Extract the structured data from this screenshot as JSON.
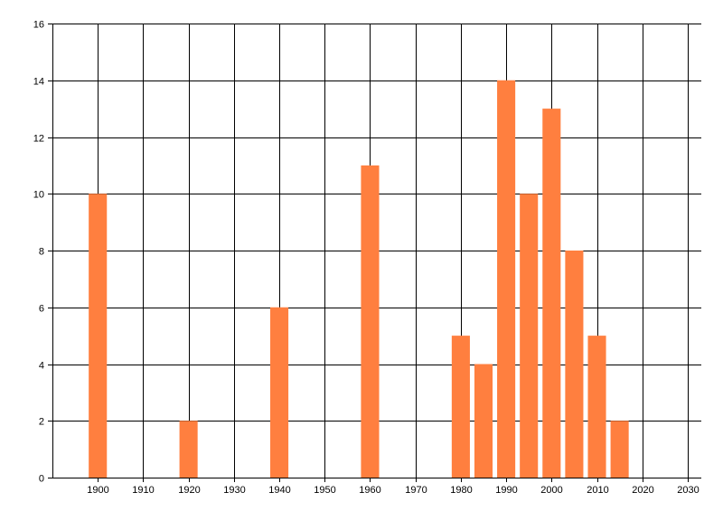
{
  "chart_data": {
    "type": "bar",
    "x": [
      1900,
      1920,
      1940,
      1960,
      1980,
      1985,
      1990,
      1995,
      2000,
      2005,
      2010,
      2015
    ],
    "values": [
      10,
      2,
      6,
      11,
      5,
      4,
      14,
      10,
      13,
      8,
      5,
      2
    ],
    "xlim": [
      1890,
      2033
    ],
    "ylim": [
      0,
      16
    ],
    "xticks": [
      1900,
      1910,
      1920,
      1930,
      1940,
      1950,
      1960,
      1970,
      1980,
      1990,
      2000,
      2010,
      2020,
      2030
    ],
    "yticks": [
      0,
      2,
      4,
      6,
      8,
      10,
      12,
      14,
      16
    ],
    "bar_width": 4,
    "grid": true,
    "legend": "none",
    "bar_color": "#FF7F3F",
    "grid_color": "#000000"
  }
}
